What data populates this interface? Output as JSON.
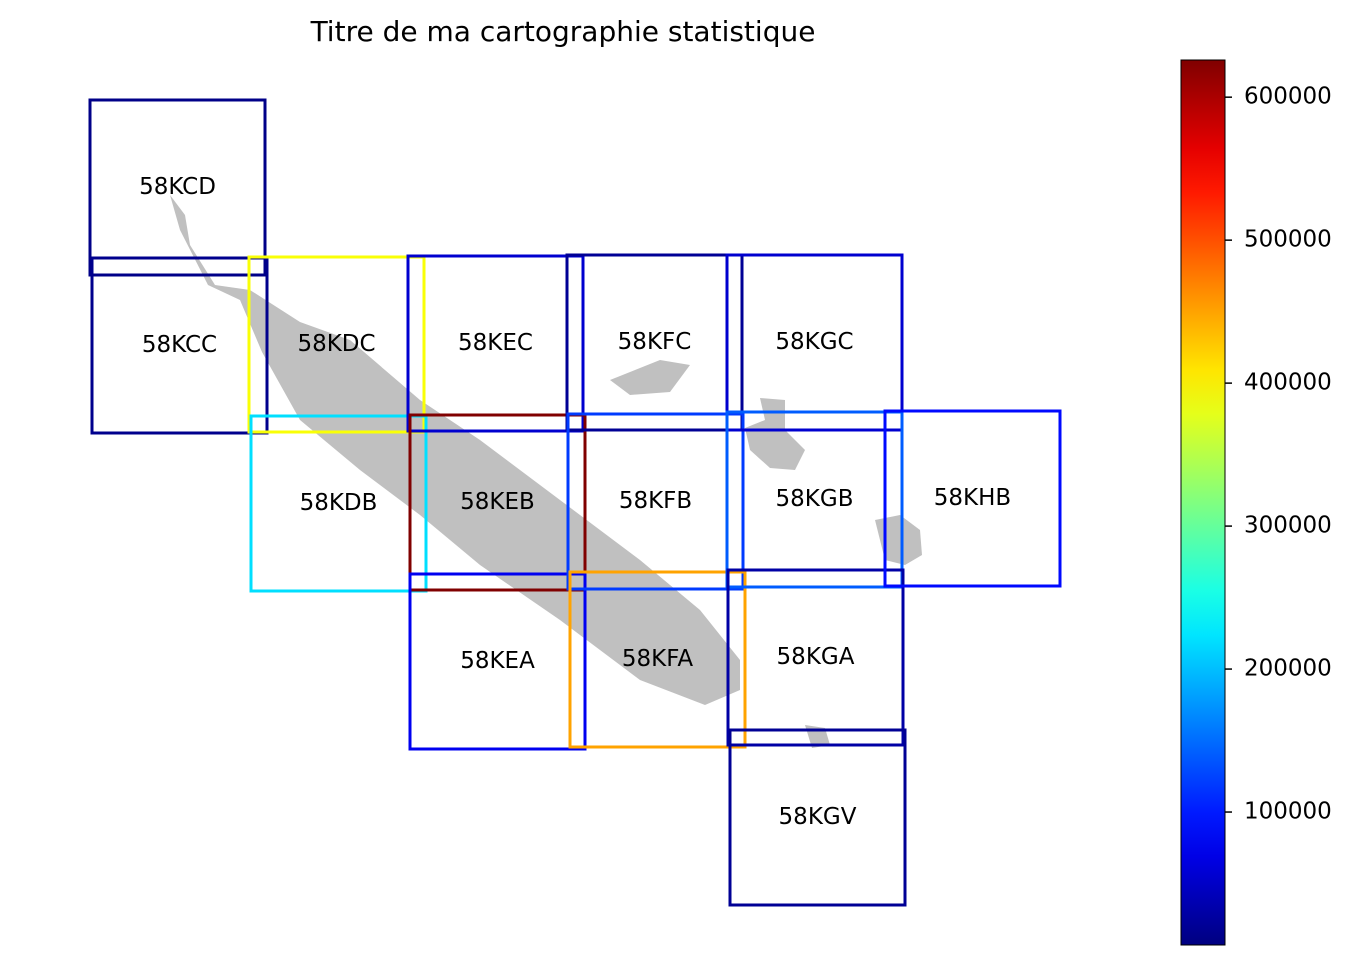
{
  "chart_data": {
    "type": "choropleth",
    "title": "Titre de ma cartographie statistique",
    "colormap": "jet",
    "regions": [
      {
        "name": "58KCD",
        "value": 12000
      },
      {
        "name": "58KCC",
        "value": 15000
      },
      {
        "name": "58KDC",
        "value": 390000
      },
      {
        "name": "58KDB",
        "value": 220000
      },
      {
        "name": "58KEC",
        "value": 55000
      },
      {
        "name": "58KEB",
        "value": 626000
      },
      {
        "name": "58KEA",
        "value": 75000
      },
      {
        "name": "58KFC",
        "value": 20000
      },
      {
        "name": "58KFB",
        "value": 120000
      },
      {
        "name": "58KFA",
        "value": 450000
      },
      {
        "name": "58KGC",
        "value": 55000
      },
      {
        "name": "58KGB",
        "value": 140000
      },
      {
        "name": "58KGA",
        "value": 30000
      },
      {
        "name": "58KGV",
        "value": 20000
      },
      {
        "name": "58KHB",
        "value": 90000
      }
    ],
    "clim": [
      7000,
      626000
    ],
    "cticks": [
      100000,
      200000,
      300000,
      400000,
      500000,
      600000
    ]
  }
}
